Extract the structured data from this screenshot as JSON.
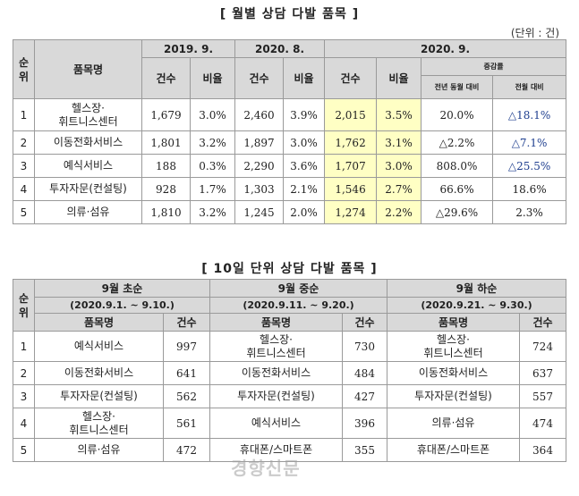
{
  "title1": "[ 월별 상담 다발 품목 ]",
  "unit": "(단위 : 건)",
  "t1": {
    "rank_head": "순\n위",
    "item_head": "품목명",
    "periods": [
      "2019. 9.",
      "2020. 8.",
      "2020. 9."
    ],
    "count_head": "건수",
    "ratio_head": "비율",
    "change_head": "증감률",
    "change_sub": [
      "전년 동월 대비",
      "전월 대비"
    ],
    "rows": [
      {
        "rank": "1",
        "item": "헬스장·\n휘트니스센터",
        "c19": "1,679",
        "r19": "3.0%",
        "c208": "2,460",
        "r208": "3.9%",
        "c209": "2,015",
        "r209": "3.5%",
        "yoy": "20.0%",
        "mom": "△18.1%"
      },
      {
        "rank": "2",
        "item": "이동전화서비스",
        "c19": "1,801",
        "r19": "3.2%",
        "c208": "1,897",
        "r208": "3.0%",
        "c209": "1,762",
        "r209": "3.1%",
        "yoy": "△2.2%",
        "mom": "△7.1%"
      },
      {
        "rank": "3",
        "item": "예식서비스",
        "c19": "188",
        "r19": "0.3%",
        "c208": "2,290",
        "r208": "3.6%",
        "c209": "1,707",
        "r209": "3.0%",
        "yoy": "808.0%",
        "mom": "△25.5%"
      },
      {
        "rank": "4",
        "item": "투자자문(컨설팅)",
        "c19": "928",
        "r19": "1.7%",
        "c208": "1,303",
        "r208": "2.1%",
        "c209": "1,546",
        "r209": "2.7%",
        "yoy": "66.6%",
        "mom": "18.6%"
      },
      {
        "rank": "5",
        "item": "의류·섬유",
        "c19": "1,810",
        "r19": "3.2%",
        "c208": "1,245",
        "r208": "2.0%",
        "c209": "1,274",
        "r209": "2.2%",
        "yoy": "△29.6%",
        "mom": "2.3%"
      }
    ]
  },
  "title2": "[ 10일 단위 상담 다발 품목 ]",
  "t2": {
    "rank_head": "순\n위",
    "periods": [
      {
        "name": "9월 초순",
        "range": "(2020.9.1. ~ 9.10.)"
      },
      {
        "name": "9월 중순",
        "range": "(2020.9.11. ~ 9.20.)"
      },
      {
        "name": "9월 하순",
        "range": "(2020.9.21. ~ 9.30.)"
      }
    ],
    "item_head": "품목명",
    "count_head": "건수",
    "rows": [
      {
        "rank": "1",
        "a": "예식서비스",
        "ac": "997",
        "b": "헬스장·\n휘트니스센터",
        "bc": "730",
        "c": "헬스장·\n휘트니스센터",
        "cc": "724"
      },
      {
        "rank": "2",
        "a": "이동전화서비스",
        "ac": "641",
        "b": "이동전화서비스",
        "bc": "484",
        "c": "이동전화서비스",
        "cc": "637"
      },
      {
        "rank": "3",
        "a": "투자자문(컨설팅)",
        "ac": "562",
        "b": "투자자문(컨설팅)",
        "bc": "427",
        "c": "투자자문(컨설팅)",
        "cc": "557"
      },
      {
        "rank": "4",
        "a": "헬스장·\n휘트니스센터",
        "ac": "561",
        "b": "예식서비스",
        "bc": "396",
        "c": "의류·섬유",
        "cc": "474"
      },
      {
        "rank": "5",
        "a": "의류·섬유",
        "ac": "472",
        "b": "휴대폰/스마트폰",
        "bc": "355",
        "c": "휴대폰/스마트폰",
        "cc": "364"
      }
    ]
  },
  "watermark": "경향신문"
}
